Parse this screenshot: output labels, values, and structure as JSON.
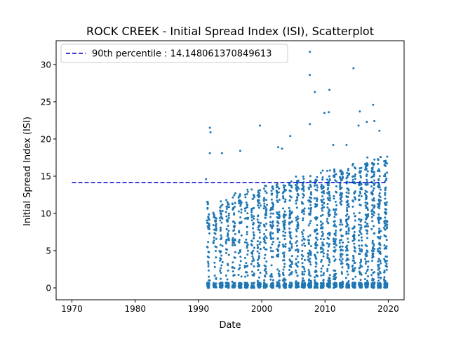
{
  "chart_data": {
    "type": "scatter",
    "title": "ROCK CREEK - Initial Spread Index (ISI), Scatterplot",
    "xlabel": "Date",
    "ylabel": "Initial Spread Index (ISI)",
    "xlim": [
      1967.5,
      2022.5
    ],
    "ylim": [
      -1.6,
      33.2
    ],
    "x_ticks": [
      1970,
      1980,
      1990,
      2000,
      2010,
      2020
    ],
    "y_ticks": [
      0,
      5,
      10,
      15,
      20,
      25,
      30
    ],
    "legend_position": "upper-left",
    "grid": false,
    "series": [
      {
        "name": "90th percentile : 14.148061370849613",
        "kind": "hline",
        "y": 14.148061370849613,
        "x_range": [
          1970,
          2019.5
        ],
        "color": "#0000cc",
        "dash": true
      },
      {
        "kind": "points",
        "color": "#1f77b4",
        "season_years": [
          1991,
          1992,
          1993,
          1994,
          1995,
          1996,
          1997,
          1998,
          1999,
          2000,
          2001,
          2002,
          2003,
          2004,
          2005,
          2006,
          2007,
          2008,
          2009,
          2010,
          2011,
          2012,
          2013,
          2014,
          2015,
          2016,
          2017,
          2018,
          2019
        ],
        "extreme_points": [
          {
            "x": 1991.2,
            "y": 14.6
          },
          {
            "x": 1991.8,
            "y": 21.5
          },
          {
            "x": 1991.9,
            "y": 20.9
          },
          {
            "x": 1991.8,
            "y": 18.1
          },
          {
            "x": 1993.7,
            "y": 18.1
          },
          {
            "x": 1996.6,
            "y": 18.4
          },
          {
            "x": 1999.7,
            "y": 21.8
          },
          {
            "x": 2002.6,
            "y": 18.9
          },
          {
            "x": 2003.2,
            "y": 18.7
          },
          {
            "x": 2004.5,
            "y": 20.4
          },
          {
            "x": 2007.6,
            "y": 31.7
          },
          {
            "x": 2007.6,
            "y": 28.6
          },
          {
            "x": 2007.6,
            "y": 22.0
          },
          {
            "x": 2008.4,
            "y": 26.3
          },
          {
            "x": 2009.9,
            "y": 23.5
          },
          {
            "x": 2010.7,
            "y": 26.6
          },
          {
            "x": 2010.6,
            "y": 23.6
          },
          {
            "x": 2011.3,
            "y": 19.2
          },
          {
            "x": 2013.4,
            "y": 19.2
          },
          {
            "x": 2014.5,
            "y": 29.5
          },
          {
            "x": 2015.5,
            "y": 23.7
          },
          {
            "x": 2015.3,
            "y": 21.8
          },
          {
            "x": 2016.6,
            "y": 22.3
          },
          {
            "x": 2017.6,
            "y": 24.6
          },
          {
            "x": 2017.8,
            "y": 22.4
          },
          {
            "x": 2018.6,
            "y": 21.1
          }
        ]
      }
    ]
  }
}
